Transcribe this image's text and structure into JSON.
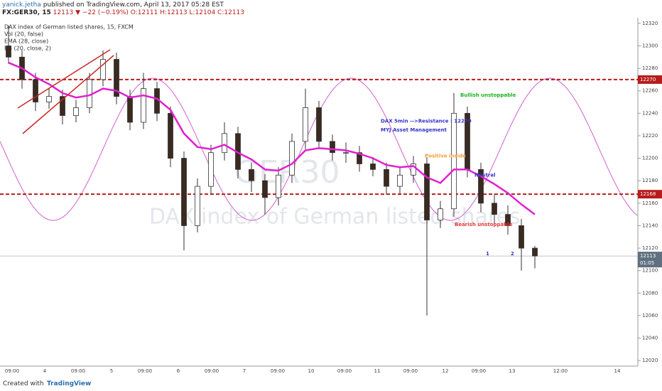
{
  "header": {
    "author": "yanick.jetha",
    "published": "published on TradingView.com, April 13, 2017 05:28 EST",
    "symbol": "FX:GER30, 15",
    "quote": "12113 ▼ −22 (−0.19%) O:12111 H:12113 L:12104 C:12113"
  },
  "legend": [
    "DAX index of German listed shares, 15, FXCM",
    "Vol (20, false)",
    "EMA (28, close)",
    "BB (20, close, 2)"
  ],
  "watermark": {
    "symbol": "GER30",
    "name": "DAX index of German listed shares"
  },
  "footer": {
    "created": "Created with",
    "brand": "TradingView"
  },
  "chart_data": {
    "type": "candlestick",
    "ylim": [
      12015,
      12325
    ],
    "yticks": [
      12020,
      12040,
      12060,
      12080,
      12100,
      12120,
      12140,
      12160,
      12180,
      12200,
      12220,
      12240,
      12260,
      12280,
      12300,
      12320
    ],
    "xlabels": [
      "09:00",
      "4",
      "09:00",
      "5",
      "09:00",
      "6",
      "09:00",
      "7",
      "09:00",
      "10",
      "09:00",
      "11",
      "09:00",
      "12",
      "09:00",
      "13",
      "12:00",
      "14"
    ],
    "up_color": "#ffffff",
    "down_color": "#3a2a20",
    "ema_color": "#e020d0",
    "level_color": "#b71c1c",
    "levels": [
      12270,
      12168
    ],
    "last_price": 12113,
    "countdown": "01:05",
    "candles": [
      {
        "o": 12300,
        "h": 12318,
        "l": 12284,
        "c": 12290
      },
      {
        "o": 12290,
        "h": 12296,
        "l": 12262,
        "c": 12270
      },
      {
        "o": 12270,
        "h": 12276,
        "l": 12242,
        "c": 12250
      },
      {
        "o": 12250,
        "h": 12262,
        "l": 12244,
        "c": 12255
      },
      {
        "o": 12255,
        "h": 12261,
        "l": 12230,
        "c": 12238
      },
      {
        "o": 12238,
        "h": 12252,
        "l": 12232,
        "c": 12245
      },
      {
        "o": 12245,
        "h": 12276,
        "l": 12240,
        "c": 12270
      },
      {
        "o": 12270,
        "h": 12296,
        "l": 12264,
        "c": 12288
      },
      {
        "o": 12288,
        "h": 12294,
        "l": 12248,
        "c": 12255
      },
      {
        "o": 12255,
        "h": 12261,
        "l": 12225,
        "c": 12232
      },
      {
        "o": 12232,
        "h": 12276,
        "l": 12226,
        "c": 12262
      },
      {
        "o": 12262,
        "h": 12268,
        "l": 12233,
        "c": 12240
      },
      {
        "o": 12240,
        "h": 12246,
        "l": 12192,
        "c": 12200
      },
      {
        "o": 12200,
        "h": 12206,
        "l": 12118,
        "c": 12140
      },
      {
        "o": 12140,
        "h": 12182,
        "l": 12134,
        "c": 12175
      },
      {
        "o": 12175,
        "h": 12212,
        "l": 12168,
        "c": 12205
      },
      {
        "o": 12205,
        "h": 12232,
        "l": 12198,
        "c": 12222
      },
      {
        "o": 12222,
        "h": 12228,
        "l": 12182,
        "c": 12190
      },
      {
        "o": 12190,
        "h": 12196,
        "l": 12170,
        "c": 12180
      },
      {
        "o": 12180,
        "h": 12186,
        "l": 12150,
        "c": 12165
      },
      {
        "o": 12165,
        "h": 12192,
        "l": 12158,
        "c": 12185
      },
      {
        "o": 12185,
        "h": 12222,
        "l": 12178,
        "c": 12215
      },
      {
        "o": 12215,
        "h": 12262,
        "l": 12208,
        "c": 12245
      },
      {
        "o": 12245,
        "h": 12251,
        "l": 12208,
        "c": 12215
      },
      {
        "o": 12215,
        "h": 12221,
        "l": 12198,
        "c": 12205
      },
      {
        "o": 12205,
        "h": 12214,
        "l": 12196,
        "c": 12205
      },
      {
        "o": 12205,
        "h": 12211,
        "l": 12188,
        "c": 12195
      },
      {
        "o": 12195,
        "h": 12201,
        "l": 12184,
        "c": 12190
      },
      {
        "o": 12190,
        "h": 12196,
        "l": 12168,
        "c": 12175
      },
      {
        "o": 12175,
        "h": 12192,
        "l": 12168,
        "c": 12185
      },
      {
        "o": 12185,
        "h": 12202,
        "l": 12178,
        "c": 12195
      },
      {
        "o": 12195,
        "h": 12201,
        "l": 12060,
        "c": 12145
      },
      {
        "o": 12145,
        "h": 12162,
        "l": 12138,
        "c": 12155
      },
      {
        "o": 12155,
        "h": 12258,
        "l": 12148,
        "c": 12240
      },
      {
        "o": 12240,
        "h": 12246,
        "l": 12183,
        "c": 12190
      },
      {
        "o": 12190,
        "h": 12196,
        "l": 12152,
        "c": 12160
      },
      {
        "o": 12160,
        "h": 12168,
        "l": 12142,
        "c": 12150
      },
      {
        "o": 12150,
        "h": 12158,
        "l": 12132,
        "c": 12140
      },
      {
        "o": 12140,
        "h": 12146,
        "l": 12100,
        "c": 12120
      },
      {
        "o": 12120,
        "h": 12122,
        "l": 12102,
        "c": 12113
      }
    ],
    "ema": [
      12285,
      12280,
      12272,
      12266,
      12258,
      12254,
      12256,
      12262,
      12260,
      12254,
      12256,
      12253,
      12243,
      12222,
      12210,
      12208,
      12212,
      12205,
      12199,
      12190,
      12189,
      12195,
      12207,
      12209,
      12208,
      12207,
      12204,
      12200,
      12194,
      12192,
      12193,
      12183,
      12178,
      12190,
      12190,
      12184,
      12177,
      12169,
      12159,
      12150
    ],
    "annotations": [
      {
        "text": "Bullish unstoppable",
        "color": "#1db31d",
        "price": 12256,
        "at": 648
      },
      {
        "text": "DAX 5min -->Resistance : 12270",
        "color": "#3535c8",
        "price": 12233,
        "at": 536
      },
      {
        "text": "MYJ Asset Management",
        "color": "#3535c8",
        "price": 12225,
        "at": 536
      },
      {
        "text": "Positive inside",
        "color": "#f0a030",
        "price": 12202,
        "at": 598
      },
      {
        "text": "Neutral",
        "color": "#3535c8",
        "price": 12185,
        "at": 668
      },
      {
        "text": "Bearish unstoppable",
        "color": "#e53935",
        "price": 12141,
        "at": 640
      },
      {
        "text": "1",
        "color": "#3535c8",
        "price": 12115,
        "at": 684
      },
      {
        "text": "2",
        "color": "#3535c8",
        "price": 12115,
        "at": 719
      }
    ]
  }
}
